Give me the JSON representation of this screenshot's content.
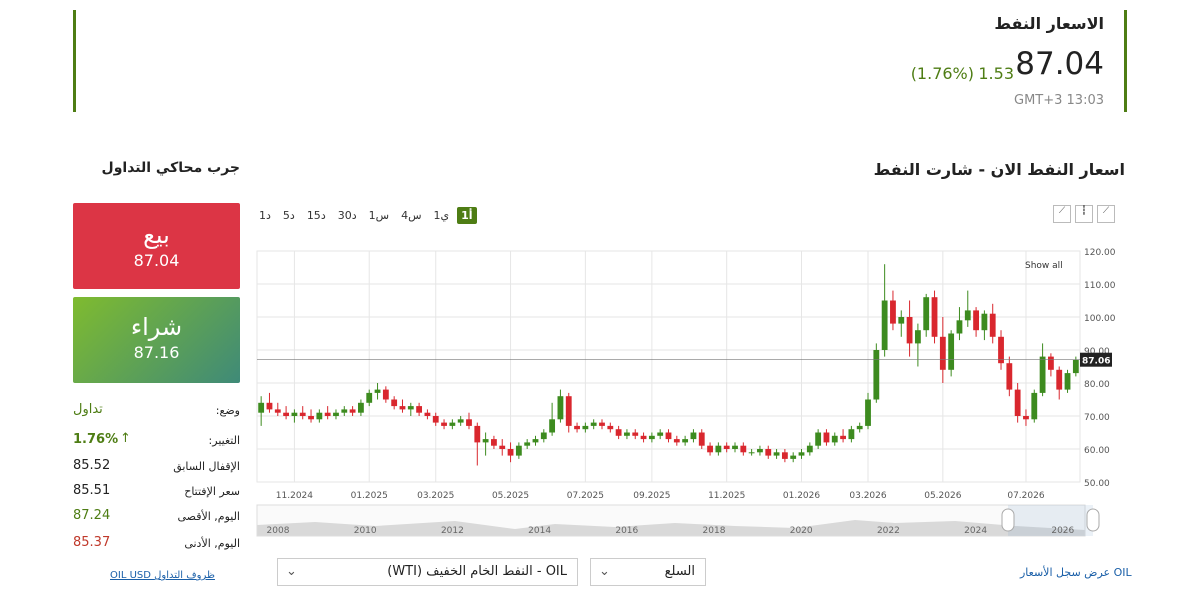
{
  "header": {
    "title": "الاسعار النفط",
    "price": 87.04,
    "change": 1.53,
    "change_percent": "(1.76%)",
    "time": "GMT+3 13:03"
  },
  "sidebar": {
    "title": "جرب محاكي التداول",
    "sell": {
      "label": "بيع",
      "price": 87.04
    },
    "buy": {
      "label": "شراء",
      "price": 87.16
    },
    "stats": [
      {
        "label": "وضع:",
        "value": "تداول"
      },
      {
        "label": "التغيير:",
        "value": "1.76%"
      },
      {
        "label": "الإقفال السابق",
        "value": 85.52
      },
      {
        "label": "سعر الإفتتاح",
        "value": 85.51
      },
      {
        "label": "اليوم, الأقصى",
        "value": 87.24
      },
      {
        "label": "اليوم, الأدنى",
        "value": 85.37
      }
    ],
    "link": "OIL USD ظروف التداول"
  },
  "chart_heading": "اسعار النفط الان - شارت النفط",
  "periods": [
    "1أ",
    "1ي",
    "4س",
    "1س",
    "30د",
    "15د",
    "5د",
    "1د"
  ],
  "chart_data": {
    "type": "candlestick",
    "x": [
      "10.2024",
      "10.2024",
      "10.2024",
      "10.2024",
      "11.2024",
      "11.2024",
      "11.2024",
      "11.2024",
      "12.2024",
      "12.2024",
      "12.2024",
      "12.2024",
      "12.2024",
      "01.2025",
      "01.2025",
      "01.2025",
      "01.2025",
      "02.2025",
      "02.2025",
      "02.2025",
      "02.2025",
      "03.2025",
      "03.2025",
      "03.2025",
      "03.2025",
      "03.2025",
      "04.2025",
      "04.2025",
      "04.2025",
      "04.2025",
      "05.2025",
      "05.2025",
      "05.2025",
      "05.2025",
      "06.2025",
      "06.2025",
      "06.2025",
      "06.2025",
      "06.2025",
      "07.2025",
      "07.2025",
      "07.2025",
      "07.2025",
      "08.2025",
      "08.2025",
      "08.2025",
      "08.2025",
      "09.2025",
      "09.2025",
      "09.2025",
      "09.2025",
      "09.2025",
      "10.2025",
      "10.2025",
      "10.2025",
      "10.2025",
      "11.2025",
      "11.2025",
      "11.2025",
      "11.2025",
      "12.2025",
      "12.2025",
      "12.2025",
      "12.2025",
      "12.2025",
      "01.2026",
      "01.2026",
      "01.2026",
      "01.2026",
      "02.2026",
      "02.2026",
      "02.2026",
      "02.2026",
      "03.2026",
      "03.2026",
      "03.2026",
      "03.2026",
      "03.2026",
      "04.2026",
      "04.2026",
      "04.2026",
      "04.2026",
      "05.2026",
      "05.2026",
      "05.2026",
      "05.2026",
      "05.2026",
      "06.2026",
      "06.2026",
      "06.2026",
      "06.2026",
      "06.2026",
      "07.2026",
      "07.2026",
      "07.2026",
      "07.2026",
      "08.2026",
      "08.2026",
      "08.2026"
    ],
    "ohlc": [
      [
        71,
        76,
        67,
        74
      ],
      [
        74,
        77,
        71,
        72
      ],
      [
        72,
        74,
        70,
        71
      ],
      [
        71,
        73,
        69,
        70
      ],
      [
        70,
        72,
        68,
        71
      ],
      [
        71,
        73,
        69,
        70
      ],
      [
        70,
        72,
        68,
        69
      ],
      [
        69,
        72,
        68,
        71
      ],
      [
        71,
        73,
        69,
        70
      ],
      [
        70,
        72,
        69,
        71
      ],
      [
        71,
        73,
        70,
        72
      ],
      [
        72,
        73,
        70,
        71
      ],
      [
        71,
        75,
        70,
        74
      ],
      [
        74,
        78,
        73,
        77
      ],
      [
        77,
        80,
        75,
        78
      ],
      [
        78,
        79,
        74,
        75
      ],
      [
        75,
        76,
        72,
        73
      ],
      [
        73,
        75,
        71,
        72
      ],
      [
        72,
        74,
        70,
        73
      ],
      [
        73,
        74,
        70,
        71
      ],
      [
        71,
        72,
        69,
        70
      ],
      [
        70,
        71,
        67,
        68
      ],
      [
        68,
        69,
        66,
        67
      ],
      [
        67,
        69,
        66,
        68
      ],
      [
        68,
        70,
        67,
        69
      ],
      [
        69,
        71,
        66,
        67
      ],
      [
        67,
        68,
        55,
        62
      ],
      [
        62,
        65,
        58,
        63
      ],
      [
        63,
        64,
        60,
        61
      ],
      [
        61,
        63,
        58,
        60
      ],
      [
        60,
        62,
        56,
        58
      ],
      [
        58,
        62,
        57,
        61
      ],
      [
        61,
        63,
        60,
        62
      ],
      [
        62,
        64,
        61,
        63
      ],
      [
        63,
        66,
        62,
        65
      ],
      [
        65,
        74,
        64,
        69
      ],
      [
        69,
        78,
        68,
        76
      ],
      [
        76,
        77,
        65,
        67
      ],
      [
        67,
        68,
        65,
        66
      ],
      [
        66,
        68,
        65,
        67
      ],
      [
        67,
        69,
        66,
        68
      ],
      [
        68,
        69,
        66,
        67
      ],
      [
        67,
        68,
        65,
        66
      ],
      [
        66,
        67,
        63,
        64
      ],
      [
        64,
        66,
        63,
        65
      ],
      [
        65,
        66,
        63,
        64
      ],
      [
        64,
        65,
        62,
        63
      ],
      [
        63,
        65,
        62,
        64
      ],
      [
        64,
        66,
        63,
        65
      ],
      [
        65,
        66,
        62,
        63
      ],
      [
        63,
        64,
        61,
        62
      ],
      [
        62,
        64,
        61,
        63
      ],
      [
        63,
        66,
        62,
        65
      ],
      [
        65,
        66,
        60,
        61
      ],
      [
        61,
        62,
        58,
        59
      ],
      [
        59,
        62,
        58,
        61
      ],
      [
        61,
        62,
        59,
        60
      ],
      [
        60,
        62,
        59,
        61
      ],
      [
        61,
        62,
        58,
        59
      ],
      [
        59,
        60,
        58,
        59
      ],
      [
        59,
        61,
        58,
        60
      ],
      [
        60,
        61,
        57,
        58
      ],
      [
        58,
        60,
        57,
        59
      ],
      [
        59,
        60,
        56,
        57
      ],
      [
        57,
        59,
        56,
        58
      ],
      [
        58,
        60,
        57,
        59
      ],
      [
        59,
        62,
        58,
        61
      ],
      [
        61,
        66,
        60,
        65
      ],
      [
        65,
        66,
        61,
        62
      ],
      [
        62,
        65,
        61,
        64
      ],
      [
        64,
        66,
        62,
        63
      ],
      [
        63,
        67,
        62,
        66
      ],
      [
        66,
        68,
        65,
        67
      ],
      [
        67,
        77,
        66,
        75
      ],
      [
        75,
        92,
        74,
        90
      ],
      [
        90,
        116,
        88,
        105
      ],
      [
        105,
        108,
        96,
        98
      ],
      [
        98,
        102,
        94,
        100
      ],
      [
        100,
        105,
        88,
        92
      ],
      [
        92,
        98,
        85,
        96
      ],
      [
        96,
        107,
        94,
        106
      ],
      [
        106,
        108,
        92,
        94
      ],
      [
        94,
        100,
        80,
        84
      ],
      [
        84,
        96,
        82,
        95
      ],
      [
        95,
        103,
        93,
        99
      ],
      [
        99,
        108,
        97,
        102
      ],
      [
        102,
        103,
        94,
        96
      ],
      [
        96,
        102,
        93,
        101
      ],
      [
        101,
        104,
        92,
        94
      ],
      [
        94,
        96,
        84,
        86
      ],
      [
        86,
        88,
        76,
        78
      ],
      [
        78,
        80,
        68,
        70
      ],
      [
        70,
        72,
        67,
        69
      ],
      [
        69,
        78,
        68,
        77
      ],
      [
        77,
        92,
        76,
        88
      ],
      [
        88,
        89,
        82,
        84
      ],
      [
        84,
        85,
        75,
        78
      ],
      [
        78,
        84,
        77,
        83
      ],
      [
        83,
        88,
        82,
        87.06
      ]
    ],
    "ylim": [
      50,
      120
    ],
    "yticks": [
      {
        "value": 50,
        "label": "50.00"
      },
      {
        "value": 60,
        "label": "60.00"
      },
      {
        "value": 70,
        "label": "70.00"
      },
      {
        "value": 80,
        "label": "80.00"
      },
      {
        "value": 90,
        "label": "90.00"
      },
      {
        "value": 100,
        "label": "100.00"
      },
      {
        "value": 110,
        "label": "110.00"
      },
      {
        "value": 120,
        "label": "120.00"
      }
    ],
    "xticks": [
      "11.2024",
      "01.2025",
      "03.2025",
      "05.2025",
      "07.2025",
      "09.2025",
      "11.2025",
      "01.2026",
      "03.2026",
      "05.2026",
      "07.2026"
    ],
    "last_price": 87.06,
    "grid": true,
    "up_color": "#3d8b1f",
    "down_color": "#d9272e",
    "show_all": "Show all",
    "navigator_years": [
      "2008",
      "2010",
      "2012",
      "2014",
      "2016",
      "2018",
      "2020",
      "2022",
      "2024",
      "2026"
    ]
  },
  "footer": {
    "history_link": "OIL عرض سجل الأسعار",
    "category_select": "السلع",
    "instrument_select": "OIL - النفط الخام الخفيف (WTI)"
  }
}
